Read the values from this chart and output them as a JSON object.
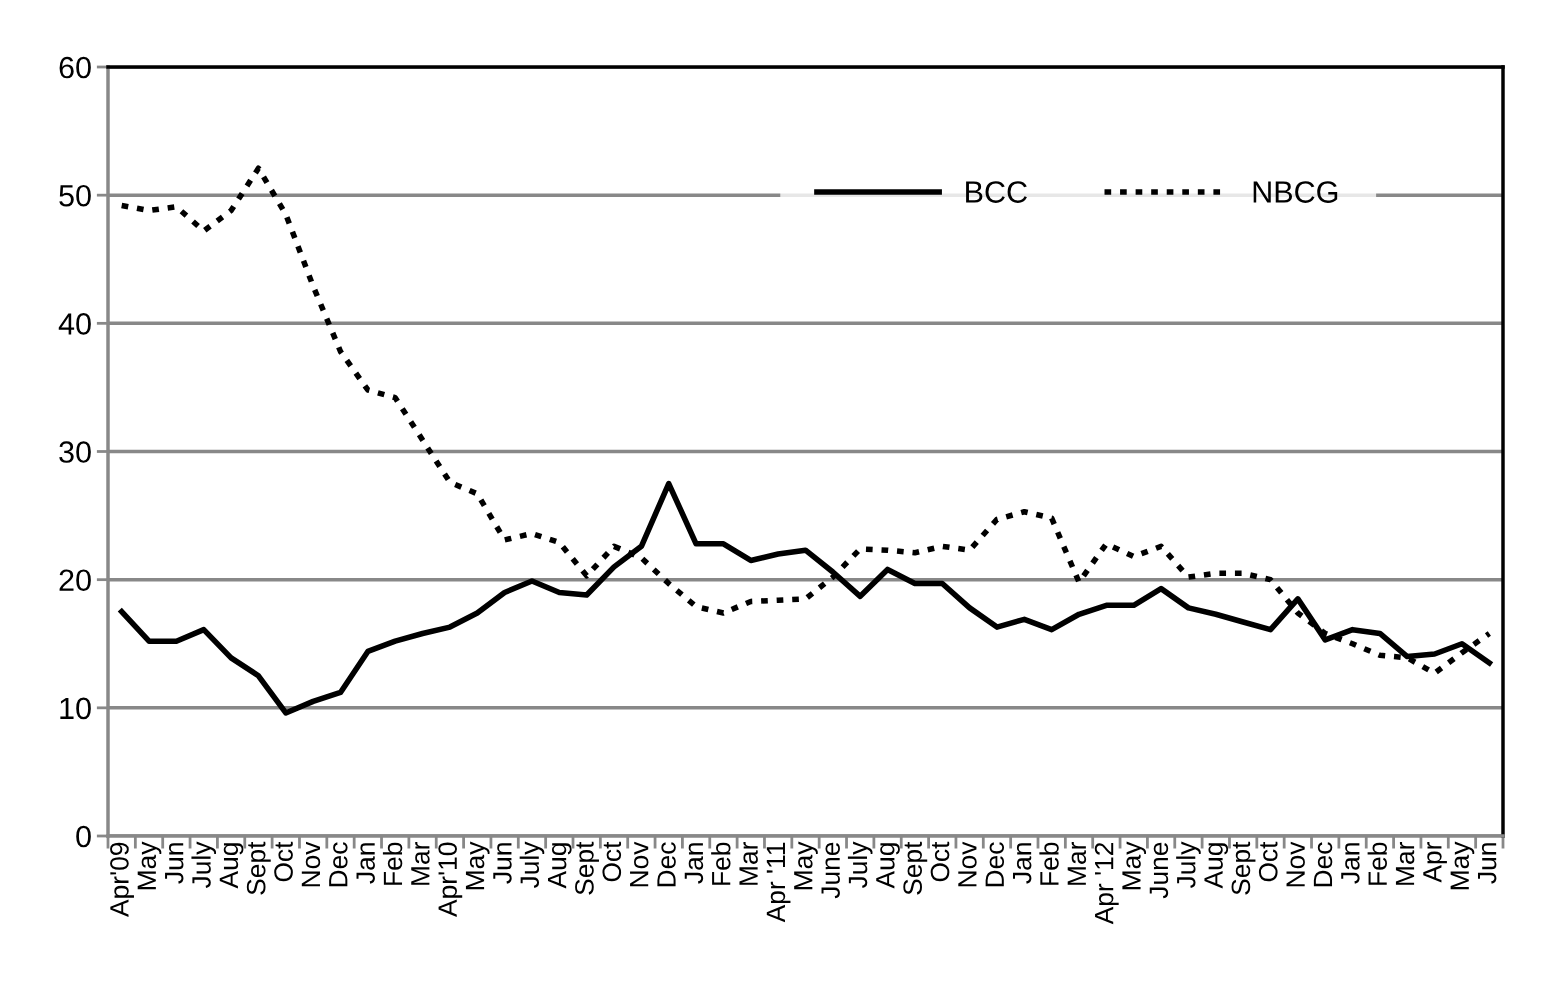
{
  "chart_data": {
    "type": "line",
    "categories": [
      "Apr'09",
      "May",
      "Jun",
      "July",
      "Aug",
      "Sept",
      "Oct",
      "Nov",
      "Dec",
      "Jan",
      "Feb",
      "Mar",
      "Apr'10",
      "May",
      "Jun",
      "July",
      "Aug",
      "Sept",
      "Oct",
      "Nov",
      "Dec",
      "Jan",
      "Feb",
      "Mar",
      "Apr '11",
      "May",
      "June",
      "July",
      "Aug",
      "Sept",
      "Oct",
      "Nov",
      "Dec",
      "Jan",
      "Feb",
      "Mar",
      "Apr '12",
      "May",
      "June",
      "July",
      "Aug",
      "Sept",
      "Oct",
      "Nov",
      "Dec",
      "Jan",
      "Feb",
      "Mar",
      "Apr",
      "May",
      "Jun"
    ],
    "series": [
      {
        "name": "BCC",
        "color": "#000000",
        "line_style": "solid",
        "values": [
          17.5,
          15.2,
          15.2,
          16.1,
          13.9,
          12.5,
          9.6,
          10.5,
          11.2,
          14.4,
          15.2,
          15.8,
          16.3,
          17.4,
          19.0,
          19.9,
          19.0,
          18.8,
          21.0,
          22.6,
          27.5,
          22.8,
          22.8,
          21.5,
          22.0,
          22.3,
          20.6,
          18.7,
          20.8,
          19.7,
          19.7,
          17.8,
          16.3,
          16.9,
          16.1,
          17.3,
          18.0,
          18.0,
          19.3,
          17.8,
          17.3,
          16.7,
          16.1,
          18.5,
          15.3,
          16.1,
          15.8,
          14.0,
          14.2,
          15.0,
          13.5
        ]
      },
      {
        "name": "NBCG",
        "color": "#000000",
        "line_style": "dotted",
        "values": [
          49.2,
          48.8,
          49.1,
          47.2,
          48.8,
          52.1,
          48.5,
          42.9,
          37.8,
          34.8,
          34.2,
          30.9,
          27.6,
          26.7,
          23.1,
          23.6,
          22.9,
          20.3,
          22.6,
          21.7,
          19.7,
          17.9,
          17.4,
          18.3,
          18.4,
          18.5,
          20.2,
          22.4,
          22.3,
          22.1,
          22.6,
          22.3,
          24.7,
          25.3,
          24.8,
          19.8,
          22.8,
          21.8,
          22.6,
          20.2,
          20.5,
          20.5,
          20.0,
          17.4,
          15.8,
          15.0,
          14.1,
          13.9,
          12.7,
          14.3,
          15.8
        ]
      }
    ],
    "ylim": [
      0,
      60
    ],
    "yticks": [
      0,
      10,
      20,
      30,
      40,
      50,
      60
    ],
    "grid": "y",
    "legend": "top right",
    "marker": "none"
  }
}
